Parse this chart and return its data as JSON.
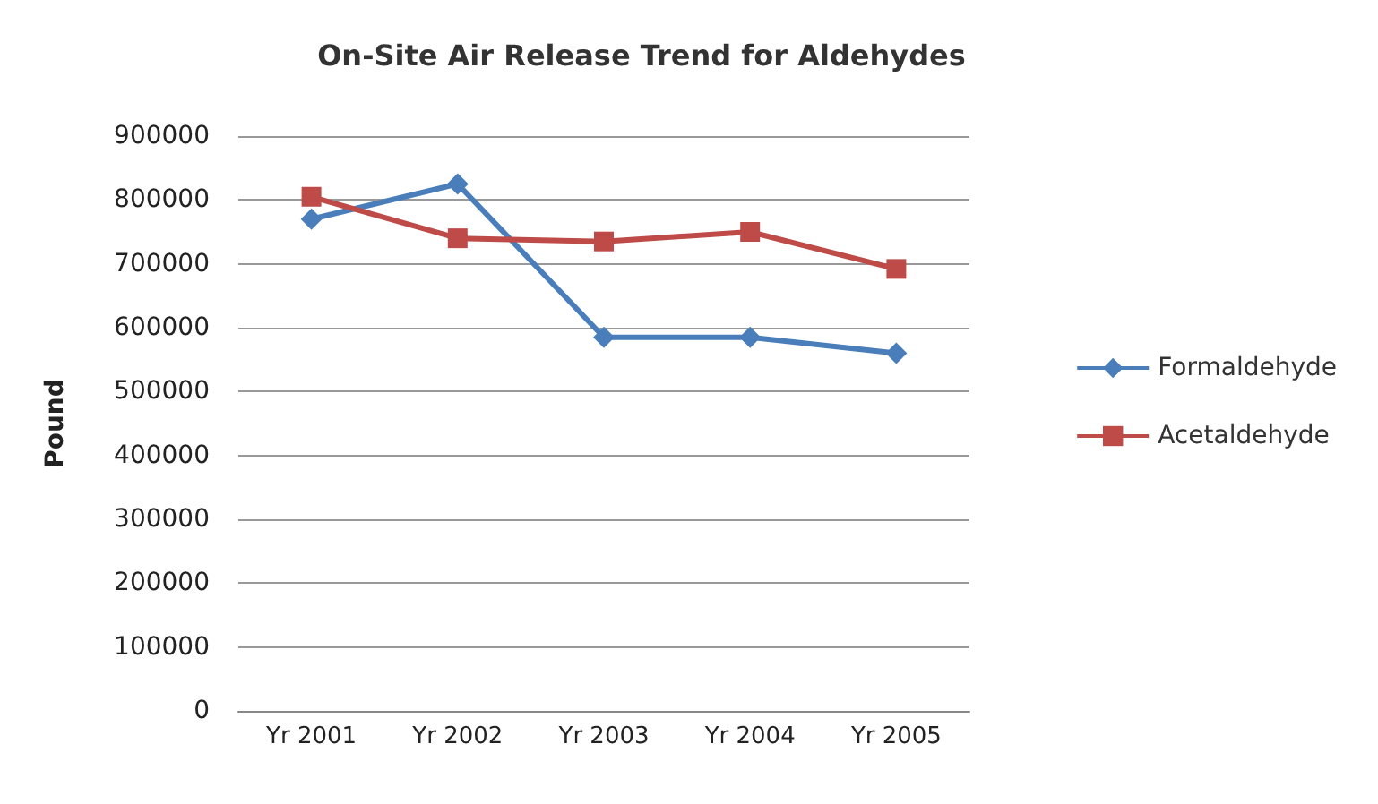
{
  "chart_data": {
    "type": "line",
    "title": "On-Site Air Release Trend for Aldehydes",
    "ylabel": "Pound",
    "categories": [
      "Yr 2001",
      "Yr 2002",
      "Yr 2003",
      "Yr 2004",
      "Yr 2005"
    ],
    "series": [
      {
        "name": "Formaldehyde",
        "color": "#4a7ebb",
        "marker": "diamond",
        "values": [
          770000,
          825000,
          585000,
          585000,
          560000
        ]
      },
      {
        "name": "Acetaldehyde",
        "color": "#be4b48",
        "marker": "square",
        "values": [
          805000,
          740000,
          735000,
          750000,
          692000
        ]
      }
    ],
    "ylim": [
      0,
      900000
    ],
    "yticks": [
      0,
      100000,
      200000,
      300000,
      400000,
      500000,
      600000,
      700000,
      800000,
      900000
    ],
    "grid": "y",
    "legend": "right"
  }
}
